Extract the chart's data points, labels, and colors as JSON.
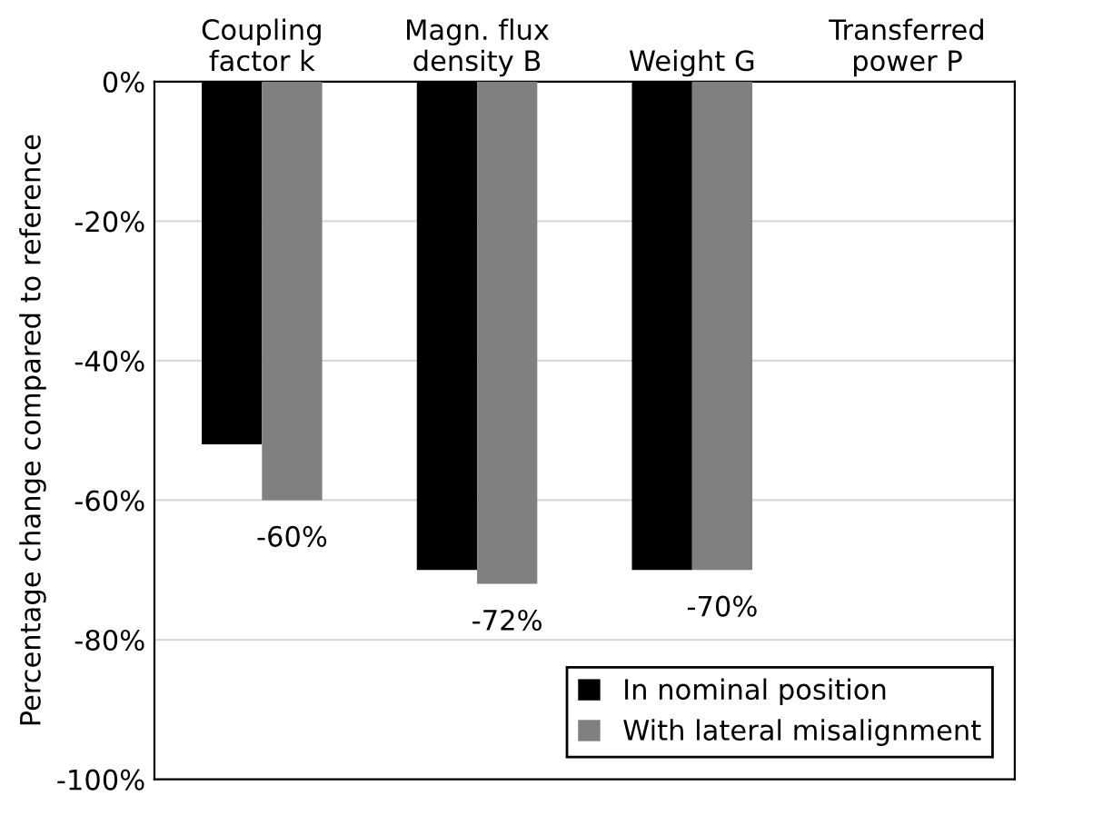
{
  "chart_data": {
    "type": "bar",
    "ylabel": "Percentage change compared to reference",
    "categories": [
      "Coupling\nfactor k",
      "Magn. flux\ndensity B",
      "Weight G",
      "Transferred\npower P"
    ],
    "series": [
      {
        "name": "In nominal position",
        "color": "#000000",
        "values": [
          -52,
          -70,
          -70,
          null
        ]
      },
      {
        "name": "With lateral misalignment",
        "color": "#808080",
        "values": [
          -60,
          -72,
          -70,
          null
        ],
        "value_labels": [
          "-60%",
          "-72%",
          "-70%",
          null
        ]
      }
    ],
    "ylim": [
      -100,
      0
    ],
    "yticks": [
      {
        "value": 0,
        "label": "0%"
      },
      {
        "value": -20,
        "label": "-20%"
      },
      {
        "value": -40,
        "label": "-40%"
      },
      {
        "value": -60,
        "label": "-60%"
      },
      {
        "value": -80,
        "label": "-80%"
      },
      {
        "value": -100,
        "label": "-100%"
      }
    ],
    "grid": "y",
    "legend": "bottom right"
  }
}
